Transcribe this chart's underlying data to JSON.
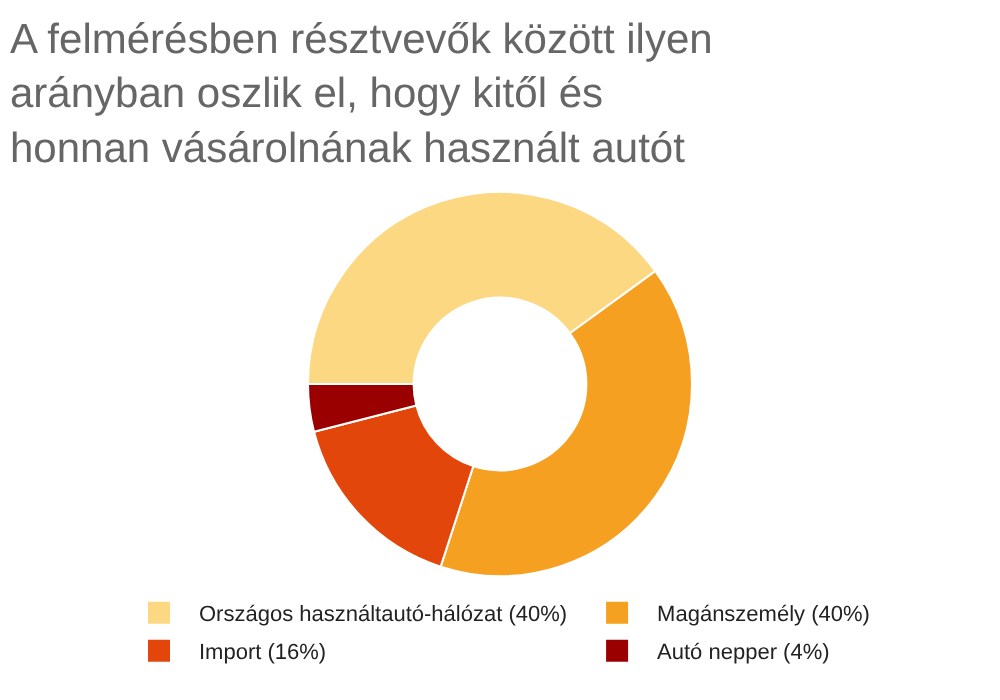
{
  "chart_data": {
    "type": "donut",
    "title": "A felmérésben résztvevők között ilyen arányban oszlik el, hogy kitől és honnan vásárolnának használt autót",
    "categories": [
      "Országos használtautó-hálózat (40%)",
      "Magánszemély (40%)",
      "Import (16%)",
      "Autó nepper (4%)"
    ],
    "values": [
      40,
      40,
      16,
      4
    ],
    "colors": [
      "#fdd882",
      "#f5a020",
      "#e2460b",
      "#9b0000"
    ],
    "legend": "bottom"
  }
}
